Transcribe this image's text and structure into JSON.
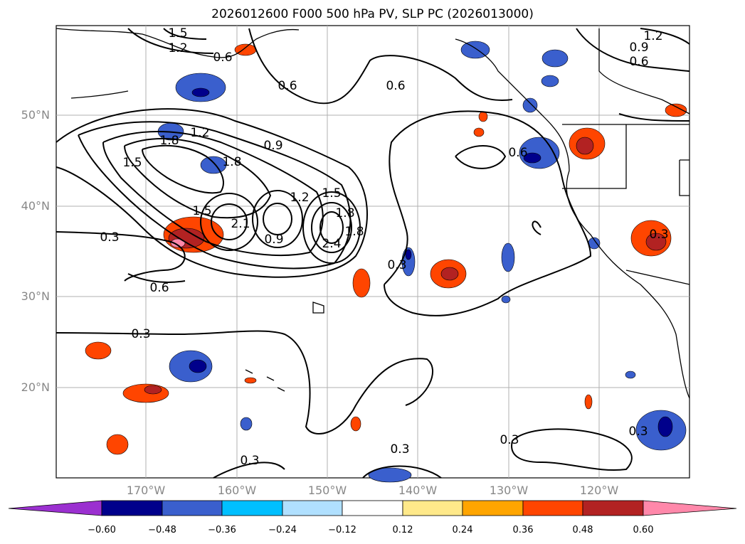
{
  "title": "2026012600 F000 500 hPa PV, SLP PC (2026013000)",
  "colors": {
    "frame": "#000000",
    "grid": "#b0b0b0",
    "coast": "#000000",
    "tick": "#888888"
  },
  "axes": {
    "lat_labels": [
      "50°N",
      "40°N",
      "30°N",
      "20°N"
    ],
    "lon_labels": [
      "170°W",
      "160°W",
      "150°W",
      "140°W",
      "130°W",
      "120°W"
    ]
  },
  "contour_labels": [
    "1.5",
    "1.2",
    "0.6",
    "0.6",
    "0.6",
    "1.2",
    "0.9",
    "0.6",
    "1.2",
    "1.8",
    "0.9",
    "1.5",
    "1.8",
    "1.5",
    "1.2",
    "1.5",
    "1.8",
    "2.4",
    "0.9",
    "2.1",
    "1.8",
    "0.3",
    "0.6",
    "0.3",
    "0.3",
    "0.3",
    "0.3",
    "0.3",
    "0.3",
    "0.6",
    "0.3"
  ],
  "colorbar": {
    "ticks": [
      "−0.60",
      "−0.48",
      "−0.36",
      "−0.24",
      "−0.12",
      "0.12",
      "0.24",
      "0.36",
      "0.48",
      "0.60"
    ],
    "colors": [
      "#9b30d0",
      "#00008b",
      "#3a5fcd",
      "#00bfff",
      "#b0e0ff",
      "#ffffff",
      "#ffe98a",
      "#ffa500",
      "#ff4500",
      "#b22222",
      "#ff88aa"
    ]
  },
  "anomalies": [
    {
      "color": "#ff4500",
      "inner": "#b22222"
    },
    {
      "color": "#3a5fcd",
      "inner": "#00008b"
    }
  ]
}
